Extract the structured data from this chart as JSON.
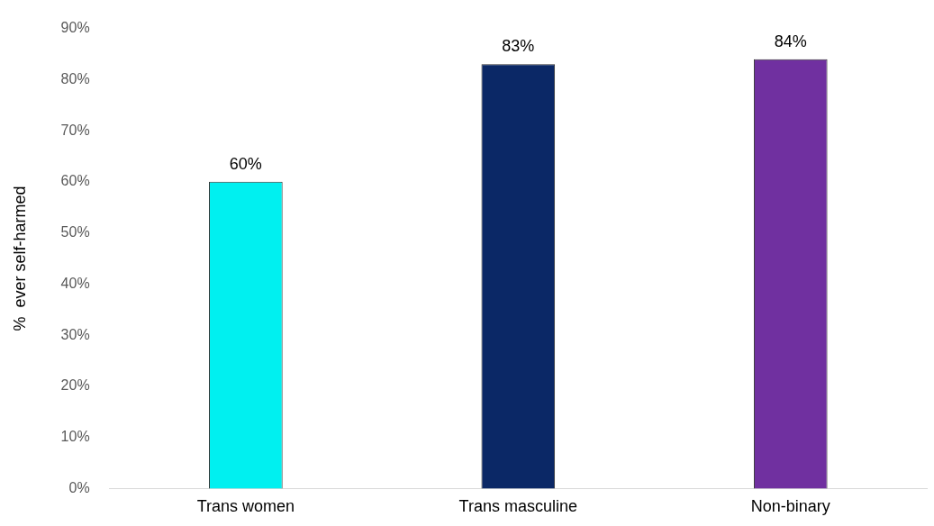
{
  "chart_data": {
    "type": "bar",
    "ylabel": "%  ever self-harmed",
    "categories": [
      "Trans women",
      "Trans masculine",
      "Non-binary"
    ],
    "values": [
      60,
      83,
      84
    ],
    "colors": [
      "#00f0f0",
      "#0b2866",
      "#7030a0"
    ],
    "value_labels": [
      "60%",
      "83%",
      "84%"
    ],
    "ylim": [
      0,
      90
    ],
    "yticks": [
      {
        "value": 0,
        "label": "0%"
      },
      {
        "value": 10,
        "label": "10%"
      },
      {
        "value": 20,
        "label": "20%"
      },
      {
        "value": 30,
        "label": "30%"
      },
      {
        "value": 40,
        "label": "40%"
      },
      {
        "value": 50,
        "label": "50%"
      },
      {
        "value": 60,
        "label": "60%"
      },
      {
        "value": 70,
        "label": "70%"
      },
      {
        "value": 80,
        "label": "80%"
      },
      {
        "value": 90,
        "label": "90%"
      }
    ],
    "grid": false,
    "legend": false
  }
}
